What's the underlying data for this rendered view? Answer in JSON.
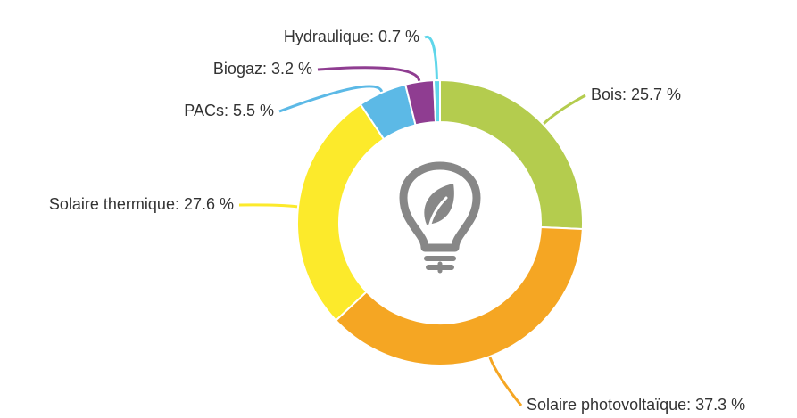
{
  "chart_data": {
    "type": "donut",
    "values": [
      25.7,
      37.3,
      27.6,
      5.5,
      3.2,
      0.7
    ],
    "value_labels": [
      "Bois: 25.7 %",
      "Solaire photovoltaïque: 37.3 %",
      "Solaire thermique: 27.6 %",
      "PACs: 5.5 %",
      "Biogaz: 3.2 %",
      "Hydraulique: 0.7 %"
    ],
    "colors": [
      "#b4cc4e",
      "#f5a623",
      "#fcea2b",
      "#5cb9e6",
      "#8f3d91",
      "#5fd6ea"
    ]
  }
}
